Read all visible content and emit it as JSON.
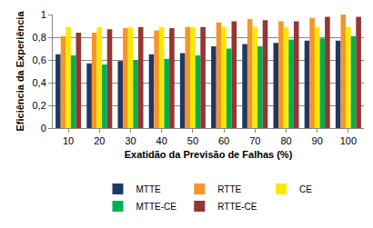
{
  "chart_data": {
    "type": "bar",
    "x_label": "Exatidão da Previsão de Falhas (%)",
    "y_label": "Eficiência da Experiência",
    "categories": [
      "10",
      "20",
      "30",
      "40",
      "50",
      "60",
      "70",
      "80",
      "90",
      "100"
    ],
    "series": [
      {
        "name": "MTTE",
        "color": "#203864",
        "values": [
          0.65,
          0.57,
          0.59,
          0.65,
          0.66,
          0.72,
          0.74,
          0.75,
          0.77,
          0.77
        ]
      },
      {
        "name": "RTTE",
        "color": "#F79428",
        "values": [
          0.81,
          0.84,
          0.88,
          0.86,
          0.89,
          0.93,
          0.96,
          0.94,
          0.97,
          1.0
        ]
      },
      {
        "name": "CE",
        "color": "#FFE800",
        "values": [
          0.89,
          0.89,
          0.89,
          0.89,
          0.89,
          0.89,
          0.89,
          0.89,
          0.89,
          0.89
        ]
      },
      {
        "name": "MTTE-CE",
        "color": "#00B050",
        "values": [
          0.64,
          0.56,
          0.6,
          0.61,
          0.64,
          0.7,
          0.72,
          0.78,
          0.79,
          0.81
        ]
      },
      {
        "name": "RTTE-CE",
        "color": "#943634",
        "values": [
          0.84,
          0.87,
          0.89,
          0.88,
          0.89,
          0.94,
          0.95,
          0.94,
          0.98,
          0.98
        ]
      }
    ],
    "ylim": [
      0,
      1
    ],
    "yticks": [
      0,
      {
        "value": 0.2,
        "label": "0,2"
      },
      {
        "value": 0.4,
        "label": "0,4"
      },
      {
        "value": 0.6,
        "label": "0,6"
      },
      {
        "value": 0.8,
        "label": "0,8"
      },
      1
    ],
    "grid": true,
    "legend": "bottom"
  }
}
